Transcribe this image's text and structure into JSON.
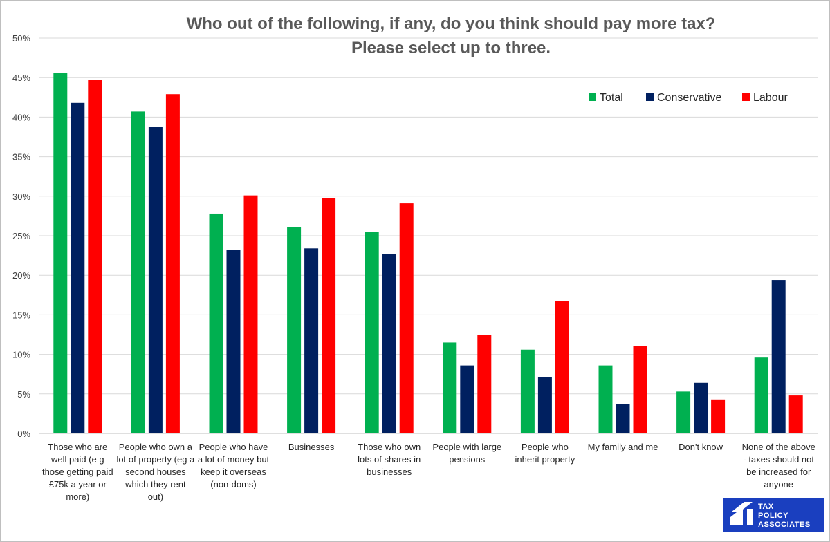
{
  "chart_data": {
    "type": "bar",
    "title": [
      "Who out of the following, if any, do you think should pay more tax?",
      "Please select up to three."
    ],
    "ylim": [
      0,
      50
    ],
    "yticks": [
      "0%",
      "5%",
      "10%",
      "15%",
      "20%",
      "25%",
      "30%",
      "35%",
      "40%",
      "45%",
      "50%"
    ],
    "grid": true,
    "legend_position": "top-right",
    "categories": [
      [
        "Those who are",
        "well paid (e g",
        "those getting paid",
        "£75k a year or",
        "more)"
      ],
      [
        "People who own a",
        "lot of property (eg a",
        "second houses",
        "which they rent",
        "out)"
      ],
      [
        "People who have",
        "a lot of money but",
        "keep it overseas",
        "(non-doms)"
      ],
      [
        "Businesses"
      ],
      [
        "Those who own",
        "lots of shares in",
        "businesses"
      ],
      [
        "People with large",
        "pensions"
      ],
      [
        "People who",
        "inherit property"
      ],
      [
        "My family and me"
      ],
      [
        "Don't know"
      ],
      [
        "None of the above",
        "- taxes should not",
        "be increased for",
        "anyone"
      ]
    ],
    "series": [
      {
        "name": "Total",
        "color": "#00b050",
        "values": [
          45.6,
          40.7,
          27.8,
          26.1,
          25.5,
          11.5,
          10.6,
          8.6,
          5.3,
          9.6
        ]
      },
      {
        "name": "Conservative",
        "color": "#002060",
        "values": [
          41.8,
          38.8,
          23.2,
          23.4,
          22.7,
          8.6,
          7.1,
          3.7,
          6.4,
          19.4
        ]
      },
      {
        "name": "Labour",
        "color": "#ff0000",
        "values": [
          44.7,
          42.9,
          30.1,
          29.8,
          29.1,
          12.5,
          16.7,
          11.1,
          4.3,
          4.8
        ]
      }
    ]
  },
  "logo": {
    "lines": [
      "TAX",
      "POLICY",
      "ASSOCIATES"
    ],
    "color": "#1a3fbf"
  }
}
